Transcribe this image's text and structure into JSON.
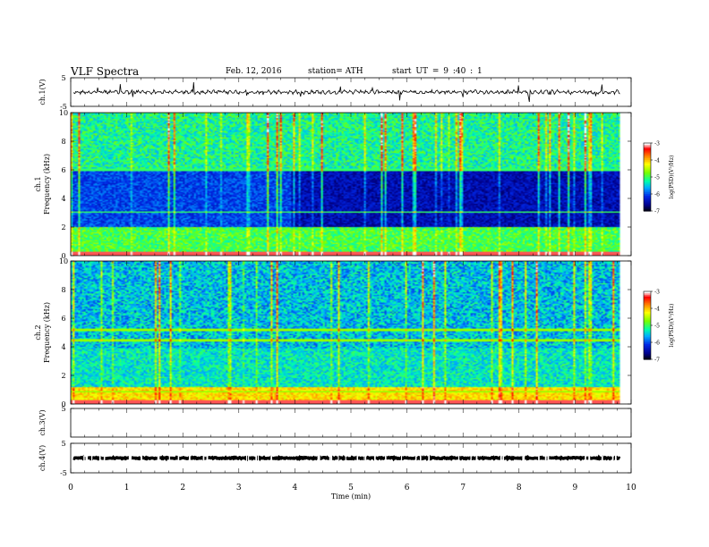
{
  "header": {
    "title": "VLF  Spectra",
    "date": "Feb. 12, 2016",
    "station": "station= ATH",
    "start": "start  UT  =   9  :40 : 1"
  },
  "chart_data": {
    "type": "heatmap",
    "x_axis": {
      "label": "Time  (min)",
      "range": [
        0,
        10
      ],
      "ticks": [
        "0",
        "1",
        "2",
        "3",
        "4",
        "5",
        "6",
        "7",
        "8",
        "9",
        "10"
      ]
    },
    "panels": [
      {
        "id": "ch1-waveform",
        "type": "line",
        "ylabel": "ch.1(V)",
        "yticks": [
          "5",
          "-5"
        ],
        "ylim": [
          -5,
          5
        ],
        "baseline": 0,
        "data_end_min": 9.8
      },
      {
        "id": "ch1-spectrogram",
        "type": "heatmap",
        "ylabel": "ch.1\nFrequency  (kHz)",
        "yticks": [
          "0",
          "2",
          "4",
          "6",
          "8",
          "10"
        ],
        "ylim": [
          0,
          10
        ],
        "data_end_min": 9.8,
        "colorbar": {
          "label": "log(PSD)(V²/Hz)",
          "ticks": [
            "-3",
            "-4",
            "-5",
            "-6",
            "-7"
          ],
          "range": [
            -7,
            -3
          ]
        }
      },
      {
        "id": "ch2-spectrogram",
        "type": "heatmap",
        "ylabel": "ch.2\nFrequency  (kHz)",
        "yticks": [
          "0",
          "2",
          "4",
          "6",
          "8",
          "10"
        ],
        "ylim": [
          0,
          10
        ],
        "data_end_min": 9.8,
        "colorbar": {
          "label": "log(PSD)(V²/Hz)",
          "ticks": [
            "-3",
            "-4",
            "-5",
            "-6",
            "-7"
          ],
          "range": [
            -7,
            -3
          ]
        }
      },
      {
        "id": "ch3-waveform",
        "type": "line",
        "ylabel": "ch.3(V)",
        "yticks": [
          "5"
        ],
        "ylim": [
          -5,
          5
        ]
      },
      {
        "id": "ch4-waveform",
        "type": "line",
        "ylabel": "ch.4(V)",
        "yticks": [
          "5",
          "-5"
        ],
        "ylim": [
          -5,
          5
        ],
        "baseline": 0,
        "data_end_min": 9.8
      }
    ]
  }
}
